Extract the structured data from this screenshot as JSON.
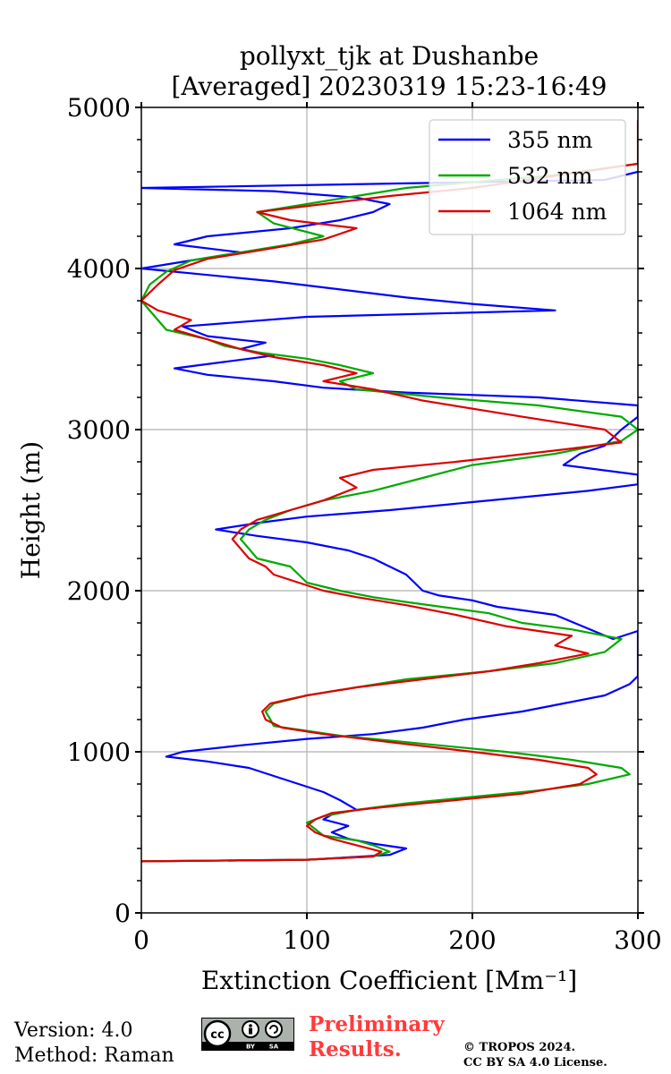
{
  "chart_data": {
    "type": "line",
    "title_line1": "pollyxt_tjk at Dushanbe",
    "title_line2": "[Averaged] 20230319 15:23-16:49",
    "xlabel": "Extinction Coefficient [Mm⁻¹]",
    "ylabel": "Height (m)",
    "xlim": [
      0,
      300
    ],
    "ylim": [
      0,
      5000
    ],
    "x_ticks": [
      0,
      100,
      200,
      300
    ],
    "y_ticks": [
      0,
      1000,
      2000,
      3000,
      4000,
      5000
    ],
    "grid": true,
    "legend_position": "top-right",
    "series": [
      {
        "name": "355 nm",
        "color": "#0000ff",
        "points": [
          [
            0,
            320
          ],
          [
            100,
            330
          ],
          [
            150,
            360
          ],
          [
            160,
            400
          ],
          [
            140,
            430
          ],
          [
            125,
            460
          ],
          [
            115,
            500
          ],
          [
            125,
            540
          ],
          [
            110,
            580
          ],
          [
            115,
            610
          ],
          [
            130,
            640
          ],
          [
            125,
            670
          ],
          [
            120,
            700
          ],
          [
            110,
            750
          ],
          [
            95,
            800
          ],
          [
            80,
            850
          ],
          [
            65,
            900
          ],
          [
            40,
            940
          ],
          [
            15,
            970
          ],
          [
            25,
            1000
          ],
          [
            60,
            1040
          ],
          [
            100,
            1080
          ],
          [
            140,
            1110
          ],
          [
            170,
            1150
          ],
          [
            195,
            1200
          ],
          [
            230,
            1250
          ],
          [
            255,
            1300
          ],
          [
            280,
            1350
          ],
          [
            295,
            1420
          ],
          [
            300,
            1470
          ],
          [
            300,
            1750
          ],
          [
            285,
            1700
          ],
          [
            250,
            1850
          ],
          [
            215,
            1900
          ],
          [
            200,
            1940
          ],
          [
            180,
            1970
          ],
          [
            170,
            2000
          ],
          [
            165,
            2050
          ],
          [
            160,
            2100
          ],
          [
            150,
            2150
          ],
          [
            140,
            2200
          ],
          [
            125,
            2250
          ],
          [
            100,
            2300
          ],
          [
            70,
            2340
          ],
          [
            45,
            2380
          ],
          [
            70,
            2420
          ],
          [
            100,
            2460
          ],
          [
            150,
            2500
          ],
          [
            200,
            2550
          ],
          [
            270,
            2620
          ],
          [
            300,
            2660
          ],
          [
            300,
            2720
          ],
          [
            255,
            2780
          ],
          [
            265,
            2850
          ],
          [
            280,
            2900
          ],
          [
            290,
            3000
          ],
          [
            300,
            3080
          ],
          [
            300,
            3150
          ],
          [
            240,
            3200
          ],
          [
            160,
            3230
          ],
          [
            110,
            3260
          ],
          [
            80,
            3300
          ],
          [
            40,
            3340
          ],
          [
            20,
            3380
          ],
          [
            50,
            3420
          ],
          [
            80,
            3460
          ],
          [
            60,
            3500
          ],
          [
            75,
            3540
          ],
          [
            40,
            3580
          ],
          [
            25,
            3640
          ],
          [
            100,
            3700
          ],
          [
            250,
            3740
          ],
          [
            200,
            3780
          ],
          [
            160,
            3820
          ],
          [
            120,
            3870
          ],
          [
            80,
            3920
          ],
          [
            40,
            3960
          ],
          [
            0,
            4000
          ],
          [
            30,
            4050
          ],
          [
            60,
            4100
          ],
          [
            20,
            4150
          ],
          [
            40,
            4200
          ],
          [
            90,
            4250
          ],
          [
            120,
            4300
          ],
          [
            140,
            4350
          ],
          [
            150,
            4400
          ],
          [
            130,
            4440
          ],
          [
            80,
            4480
          ],
          [
            0,
            4500
          ],
          [
            280,
            4550
          ],
          [
            300,
            4600
          ]
        ]
      },
      {
        "name": "532 nm",
        "color": "#00aa00",
        "points": [
          [
            0,
            320
          ],
          [
            100,
            330
          ],
          [
            140,
            350
          ],
          [
            150,
            380
          ],
          [
            140,
            420
          ],
          [
            130,
            450
          ],
          [
            110,
            480
          ],
          [
            105,
            520
          ],
          [
            100,
            560
          ],
          [
            110,
            600
          ],
          [
            130,
            640
          ],
          [
            160,
            680
          ],
          [
            200,
            720
          ],
          [
            240,
            760
          ],
          [
            270,
            800
          ],
          [
            295,
            860
          ],
          [
            290,
            900
          ],
          [
            260,
            950
          ],
          [
            220,
            1000
          ],
          [
            160,
            1060
          ],
          [
            120,
            1100
          ],
          [
            100,
            1130
          ],
          [
            80,
            1160
          ],
          [
            78,
            1200
          ],
          [
            75,
            1250
          ],
          [
            80,
            1300
          ],
          [
            100,
            1350
          ],
          [
            130,
            1400
          ],
          [
            160,
            1450
          ],
          [
            210,
            1500
          ],
          [
            250,
            1550
          ],
          [
            280,
            1620
          ],
          [
            290,
            1700
          ],
          [
            260,
            1760
          ],
          [
            230,
            1800
          ],
          [
            210,
            1860
          ],
          [
            160,
            1930
          ],
          [
            140,
            1960
          ],
          [
            120,
            2000
          ],
          [
            100,
            2050
          ],
          [
            95,
            2100
          ],
          [
            90,
            2150
          ],
          [
            70,
            2200
          ],
          [
            65,
            2260
          ],
          [
            60,
            2320
          ],
          [
            65,
            2380
          ],
          [
            75,
            2440
          ],
          [
            90,
            2500
          ],
          [
            110,
            2560
          ],
          [
            140,
            2620
          ],
          [
            170,
            2700
          ],
          [
            200,
            2780
          ],
          [
            250,
            2850
          ],
          [
            290,
            2930
          ],
          [
            300,
            3000
          ],
          [
            290,
            3080
          ],
          [
            240,
            3150
          ],
          [
            180,
            3200
          ],
          [
            130,
            3250
          ],
          [
            120,
            3300
          ],
          [
            140,
            3350
          ],
          [
            120,
            3400
          ],
          [
            100,
            3440
          ],
          [
            70,
            3480
          ],
          [
            50,
            3520
          ],
          [
            40,
            3560
          ],
          [
            15,
            3620
          ],
          [
            10,
            3680
          ],
          [
            0,
            3800
          ],
          [
            5,
            3900
          ],
          [
            15,
            3980
          ],
          [
            30,
            4050
          ],
          [
            60,
            4100
          ],
          [
            90,
            4150
          ],
          [
            110,
            4200
          ],
          [
            80,
            4280
          ],
          [
            70,
            4350
          ],
          [
            100,
            4400
          ],
          [
            130,
            4450
          ],
          [
            160,
            4500
          ],
          [
            250,
            4580
          ],
          [
            300,
            4650
          ]
        ]
      },
      {
        "name": "1064 nm",
        "color": "#dd0000",
        "points": [
          [
            0,
            320
          ],
          [
            100,
            330
          ],
          [
            140,
            350
          ],
          [
            145,
            380
          ],
          [
            130,
            420
          ],
          [
            115,
            460
          ],
          [
            105,
            500
          ],
          [
            100,
            540
          ],
          [
            105,
            580
          ],
          [
            115,
            620
          ],
          [
            140,
            650
          ],
          [
            180,
            690
          ],
          [
            230,
            740
          ],
          [
            265,
            800
          ],
          [
            275,
            860
          ],
          [
            270,
            900
          ],
          [
            240,
            950
          ],
          [
            200,
            1000
          ],
          [
            150,
            1060
          ],
          [
            110,
            1110
          ],
          [
            85,
            1150
          ],
          [
            75,
            1200
          ],
          [
            73,
            1250
          ],
          [
            78,
            1300
          ],
          [
            100,
            1350
          ],
          [
            130,
            1400
          ],
          [
            170,
            1450
          ],
          [
            210,
            1500
          ],
          [
            240,
            1550
          ],
          [
            270,
            1610
          ],
          [
            250,
            1660
          ],
          [
            260,
            1720
          ],
          [
            220,
            1780
          ],
          [
            190,
            1850
          ],
          [
            160,
            1910
          ],
          [
            130,
            1960
          ],
          [
            110,
            2000
          ],
          [
            95,
            2050
          ],
          [
            80,
            2100
          ],
          [
            75,
            2150
          ],
          [
            65,
            2200
          ],
          [
            60,
            2260
          ],
          [
            55,
            2320
          ],
          [
            60,
            2380
          ],
          [
            70,
            2440
          ],
          [
            90,
            2500
          ],
          [
            110,
            2560
          ],
          [
            130,
            2640
          ],
          [
            120,
            2700
          ],
          [
            140,
            2750
          ],
          [
            190,
            2800
          ],
          [
            250,
            2870
          ],
          [
            290,
            2920
          ],
          [
            280,
            3000
          ],
          [
            230,
            3080
          ],
          [
            170,
            3180
          ],
          [
            140,
            3250
          ],
          [
            110,
            3300
          ],
          [
            130,
            3350
          ],
          [
            110,
            3400
          ],
          [
            80,
            3450
          ],
          [
            60,
            3500
          ],
          [
            40,
            3560
          ],
          [
            20,
            3620
          ],
          [
            30,
            3680
          ],
          [
            10,
            3740
          ],
          [
            0,
            3800
          ],
          [
            10,
            3900
          ],
          [
            20,
            3990
          ],
          [
            40,
            4060
          ],
          [
            70,
            4110
          ],
          [
            110,
            4180
          ],
          [
            130,
            4250
          ],
          [
            90,
            4300
          ],
          [
            70,
            4350
          ],
          [
            110,
            4400
          ],
          [
            150,
            4450
          ],
          [
            200,
            4500
          ],
          [
            300,
            4650
          ],
          [
            300,
            4920
          ]
        ]
      }
    ]
  },
  "footer": {
    "version": "Version: 4.0",
    "method": "Method: Raman",
    "preliminary_line1": "Preliminary",
    "preliminary_line2": "Results.",
    "copyright_line1": "© TROPOS 2024.",
    "copyright_line2": "CC BY SA 4.0 License.",
    "cc_badge_by": "BY",
    "cc_badge_sa": "SA"
  }
}
